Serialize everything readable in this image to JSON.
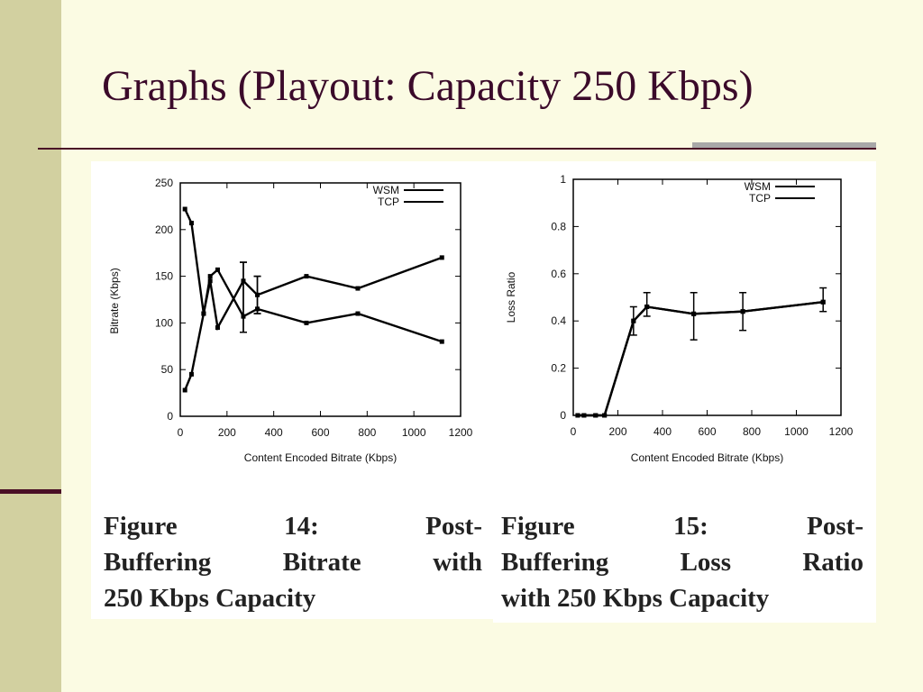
{
  "slide": {
    "title": "Graphs (Playout: Capacity 250 Kbps)"
  },
  "colors": {
    "background": "#FBFBE3",
    "left_bar": "#D2D0A0",
    "accent": "#4A0F26",
    "title": "#3B0A2A",
    "rule_gray": "#A8A8A8"
  },
  "captions": {
    "fig14": {
      "line1": [
        "Figure",
        "14:",
        "Post-"
      ],
      "line2": [
        "Buffering",
        "Bitrate",
        "with"
      ],
      "line3": "250 Kbps Capacity"
    },
    "fig15": {
      "line1": [
        "Figure",
        "15:",
        "Post-"
      ],
      "line2": [
        "Buffering",
        "Loss",
        "Ratio"
      ],
      "line3": "with 250 Kbps Capacity"
    }
  },
  "chart_data": [
    {
      "type": "line",
      "title": "",
      "xlabel": "Content Encoded Bitrate (Kbps)",
      "ylabel": "Bitrate (Kbps)",
      "xlim": [
        0,
        1200
      ],
      "ylim": [
        0,
        250
      ],
      "xticks": [
        0,
        200,
        400,
        600,
        800,
        1000,
        1200
      ],
      "xtick_labels": [
        "0",
        "200",
        "400",
        "600",
        "800",
        "1000",
        "1200"
      ],
      "yticks": [
        0,
        50,
        100,
        150,
        200,
        250
      ],
      "ytick_labels": [
        "0",
        "50",
        "100",
        "150",
        "200",
        "250"
      ],
      "grid": false,
      "legend_position": "top-right",
      "series": [
        {
          "name": "WSM",
          "points": [
            [
              20,
              28
            ],
            [
              48,
              45
            ],
            [
              100,
              110
            ],
            [
              128,
              145
            ],
            [
              160,
              95
            ],
            [
              270,
              145
            ],
            [
              330,
              130
            ],
            [
              540,
              150
            ],
            [
              760,
              137
            ],
            [
              1120,
              170
            ]
          ],
          "error_bars": [
            [
              270,
              90,
              165
            ],
            [
              330,
              110,
              150
            ]
          ]
        },
        {
          "name": "TCP",
          "points": [
            [
              20,
              222
            ],
            [
              48,
              207
            ],
            [
              100,
              110
            ],
            [
              128,
              150
            ],
            [
              160,
              157
            ],
            [
              270,
              107
            ],
            [
              330,
              115
            ],
            [
              540,
              100
            ],
            [
              760,
              110
            ],
            [
              1120,
              80
            ]
          ],
          "error_bars": [
            [
              270,
              90,
              165
            ],
            [
              330,
              110,
              150
            ]
          ]
        }
      ]
    },
    {
      "type": "line",
      "title": "",
      "xlabel": "Content Encoded Bitrate (Kbps)",
      "ylabel": "Loss Ratio",
      "xlim": [
        0,
        1200
      ],
      "ylim": [
        0,
        1
      ],
      "xticks": [
        0,
        200,
        400,
        600,
        800,
        1000,
        1200
      ],
      "xtick_labels": [
        "0",
        "200",
        "400",
        "600",
        "800",
        "1000",
        "1200"
      ],
      "yticks": [
        0,
        0.2,
        0.4,
        0.6,
        0.8,
        1
      ],
      "ytick_labels": [
        "0",
        "0.2",
        "0.4",
        "0.6",
        "0.8",
        "1"
      ],
      "grid": false,
      "legend_position": "top-right",
      "series": [
        {
          "name": "WSM",
          "points": [
            [
              20,
              0
            ],
            [
              48,
              0
            ],
            [
              100,
              0
            ],
            [
              140,
              0
            ],
            [
              270,
              0.4
            ],
            [
              330,
              0.46
            ],
            [
              540,
              0.43
            ],
            [
              760,
              0.44
            ],
            [
              1120,
              0.48
            ]
          ],
          "error_bars": [
            [
              270,
              0.34,
              0.46
            ],
            [
              330,
              0.42,
              0.52
            ],
            [
              540,
              0.32,
              0.52
            ],
            [
              760,
              0.36,
              0.52
            ],
            [
              1120,
              0.44,
              0.54
            ]
          ]
        },
        {
          "name": "TCP",
          "points": [
            [
              20,
              0
            ],
            [
              48,
              0
            ],
            [
              100,
              0
            ],
            [
              140,
              0
            ],
            [
              270,
              0.4
            ],
            [
              330,
              0.46
            ],
            [
              540,
              0.43
            ],
            [
              760,
              0.44
            ],
            [
              1120,
              0.48
            ]
          ],
          "error_bars": []
        }
      ]
    }
  ]
}
